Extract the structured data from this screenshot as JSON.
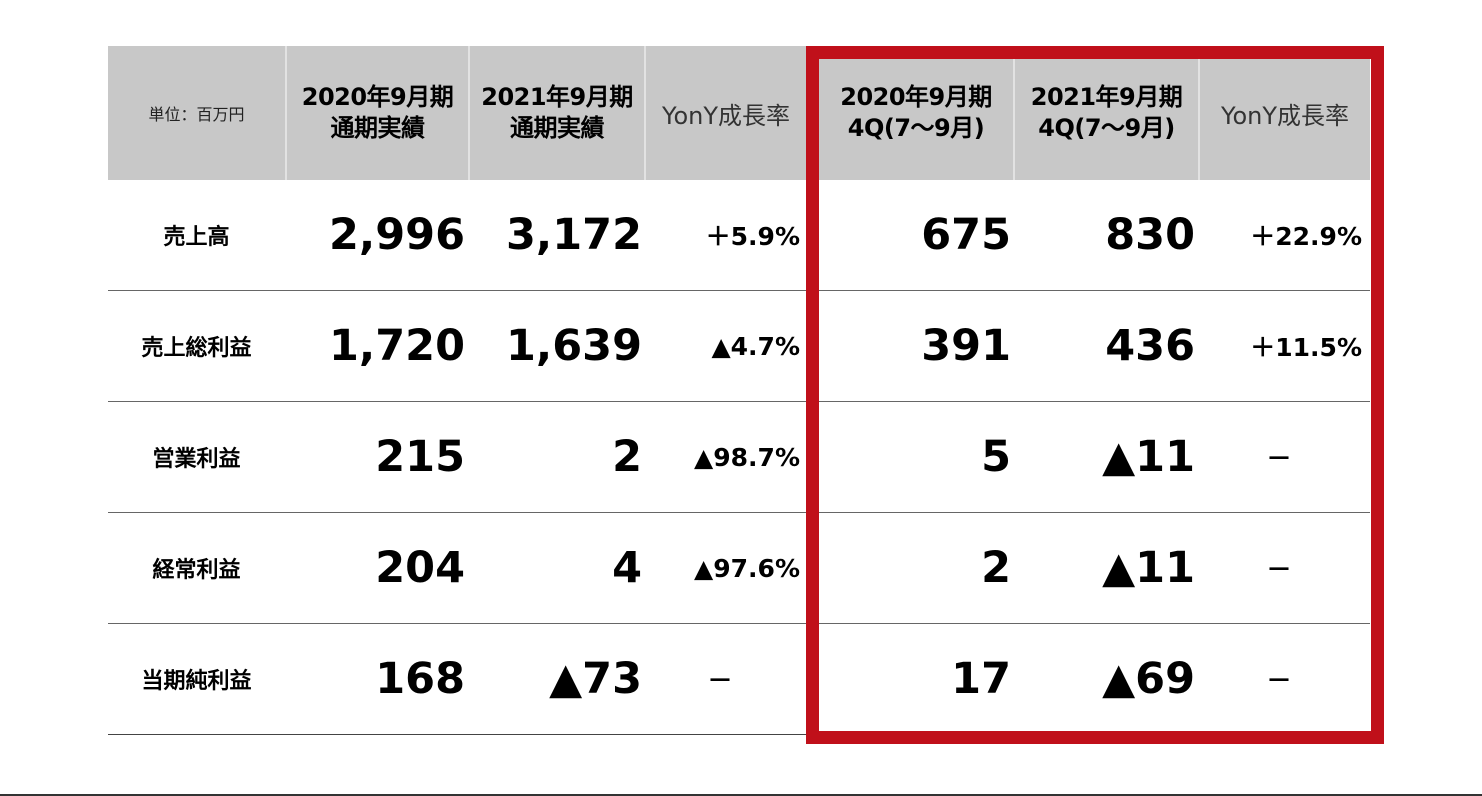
{
  "header": {
    "unit": "単位：百万円",
    "col1": [
      "2020年9月期",
      "通期実績"
    ],
    "col2": [
      "2021年9月期",
      "通期実績"
    ],
    "col3": "YonY成長率",
    "col4": [
      "2020年9月期",
      "4Q(7～9月)"
    ],
    "col5": [
      "2021年9月期",
      "4Q(7～9月)"
    ],
    "col6": "YonY成長率"
  },
  "rows": [
    {
      "label": "売上高",
      "fy2020": "2,996",
      "fy2021": "3,172",
      "fy_growth": "＋5.9%",
      "q4_2020": "675",
      "q4_2021": "830",
      "q4_growth": "＋22.9%"
    },
    {
      "label": "売上総利益",
      "fy2020": "1,720",
      "fy2021": "1,639",
      "fy_growth": "▲4.7%",
      "q4_2020": "391",
      "q4_2021": "436",
      "q4_growth": "＋11.5%"
    },
    {
      "label": "営業利益",
      "fy2020": "215",
      "fy2021": "2",
      "fy_growth": "▲98.7%",
      "q4_2020": "5",
      "q4_2021": "▲11",
      "q4_growth": "－"
    },
    {
      "label": "経常利益",
      "fy2020": "204",
      "fy2021": "4",
      "fy_growth": "▲97.6%",
      "q4_2020": "2",
      "q4_2021": "▲11",
      "q4_growth": "－"
    },
    {
      "label": "当期純利益",
      "fy2020": "168",
      "fy2021": "▲73",
      "fy_growth": "－",
      "q4_2020": "17",
      "q4_2021": "▲69",
      "q4_growth": "－"
    }
  ],
  "highlight_color": "#c0101a"
}
